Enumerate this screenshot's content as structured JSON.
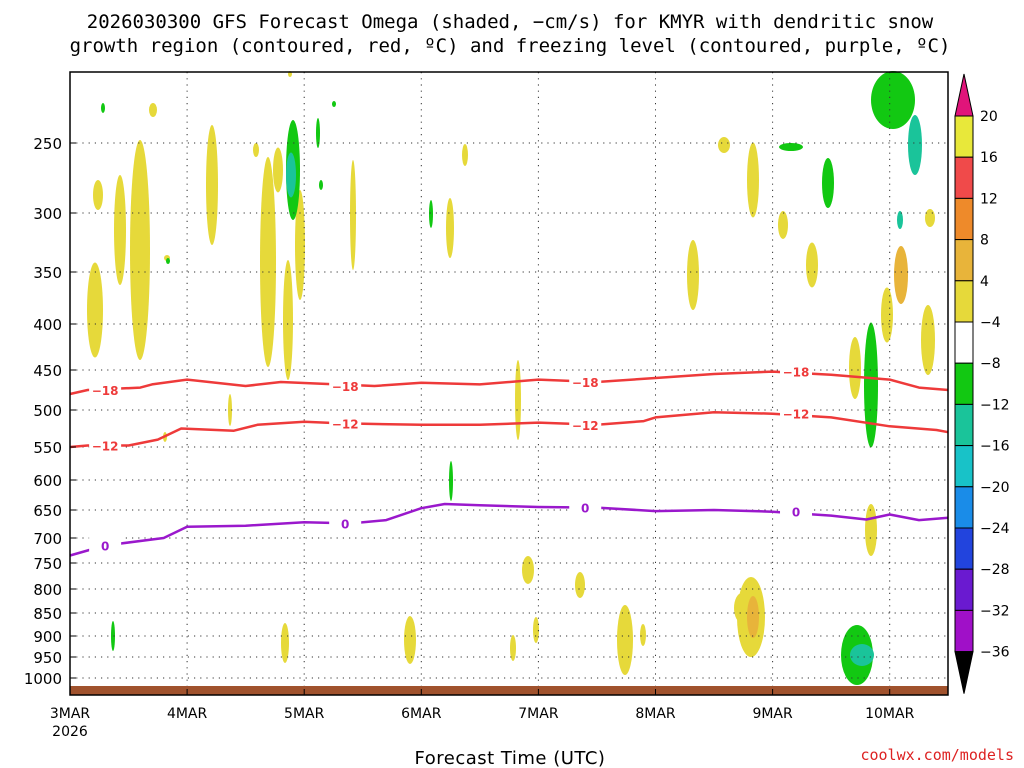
{
  "title_line1": "2026030300 GFS Forecast Omega (shaded, −cm/s) for KMYR with dendritic snow",
  "title_line2": "growth region (contoured, red, ºC) and freezing level (contoured, purple, ºC)",
  "xlabel": "Forecast Time (UTC)",
  "credit": "coolwx.com/models",
  "chart_data": {
    "type": "heatmap",
    "y_axis": {
      "ticks": [
        250,
        300,
        350,
        400,
        450,
        500,
        550,
        600,
        650,
        700,
        750,
        800,
        850,
        900,
        950,
        1000
      ],
      "inverted": true
    },
    "x_axis": {
      "range": [
        "2026-03-03T00",
        "2026-03-10T12"
      ],
      "ticks": [
        {
          "day": 0,
          "label": "3MAR",
          "sub": "2026"
        },
        {
          "day": 1,
          "label": "4MAR"
        },
        {
          "day": 2,
          "label": "5MAR"
        },
        {
          "day": 3,
          "label": "6MAR"
        },
        {
          "day": 4,
          "label": "7MAR"
        },
        {
          "day": 5,
          "label": "8MAR"
        },
        {
          "day": 6,
          "label": "9MAR"
        },
        {
          "day": 7,
          "label": "10MAR"
        }
      ]
    },
    "grid": true,
    "colorbar": {
      "levels": [
        {
          "value": "20",
          "color": "#e8e83a"
        },
        {
          "value": "16",
          "color": "#f04a4a"
        },
        {
          "value": "12",
          "color": "#ee8a2a"
        },
        {
          "value": "8",
          "color": "#e8b43a"
        },
        {
          "value": "4",
          "color": "#e6d93a"
        },
        {
          "value": "−4",
          "color": "#ffffff"
        },
        {
          "value": "−8",
          "color": "#12c812"
        },
        {
          "value": "−12",
          "color": "#1ac49a"
        },
        {
          "value": "−16",
          "color": "#18c2c8"
        },
        {
          "value": "−20",
          "color": "#1a8ce8"
        },
        {
          "value": "−24",
          "color": "#2244dd"
        },
        {
          "value": "−28",
          "color": "#6a1ad0"
        },
        {
          "value": "−32",
          "color": "#a010c8"
        },
        {
          "value": "−36",
          "color": "#a8a8a8"
        }
      ],
      "top_arrow_color": "#e0147a",
      "bottom_arrow_color": "#000000"
    },
    "contours": [
      {
        "label": "−18",
        "color": "#ee3a3a",
        "points": [
          [
            0,
            480
          ],
          [
            0.15,
            475
          ],
          [
            0.6,
            472
          ],
          [
            0.7,
            468
          ],
          [
            1,
            462
          ],
          [
            1.5,
            470
          ],
          [
            1.8,
            465
          ],
          [
            2.6,
            470
          ],
          [
            3,
            466
          ],
          [
            3.5,
            468
          ],
          [
            4,
            462
          ],
          [
            4.5,
            465
          ],
          [
            5,
            460
          ],
          [
            5.5,
            455
          ],
          [
            6,
            452
          ],
          [
            6.5,
            456
          ],
          [
            7,
            462
          ],
          [
            7.25,
            472
          ],
          [
            7.5,
            475
          ]
        ]
      },
      {
        "label": "−12",
        "color": "#ee3a3a",
        "points": [
          [
            0,
            550
          ],
          [
            0.15,
            548
          ],
          [
            0.5,
            548
          ],
          [
            0.75,
            540
          ],
          [
            0.95,
            525
          ],
          [
            1.4,
            528
          ],
          [
            1.6,
            520
          ],
          [
            2,
            516
          ],
          [
            2.3,
            518
          ],
          [
            3,
            520
          ],
          [
            3.5,
            520
          ],
          [
            4,
            517
          ],
          [
            4.5,
            520
          ],
          [
            4.9,
            515
          ],
          [
            5,
            510
          ],
          [
            5.5,
            503
          ],
          [
            6,
            505
          ],
          [
            6.5,
            510
          ],
          [
            7,
            522
          ],
          [
            7.4,
            527
          ],
          [
            7.5,
            530
          ]
        ]
      },
      {
        "label": "0",
        "color": "#9a18cc",
        "points": [
          [
            0,
            735
          ],
          [
            0.3,
            715
          ],
          [
            0.8,
            700
          ],
          [
            1,
            680
          ],
          [
            1.5,
            678
          ],
          [
            2,
            672
          ],
          [
            2.4,
            674
          ],
          [
            2.7,
            668
          ],
          [
            3,
            647
          ],
          [
            3.2,
            640
          ],
          [
            3.5,
            642
          ],
          [
            4,
            645
          ],
          [
            4.5,
            646
          ],
          [
            5,
            652
          ],
          [
            5.5,
            650
          ],
          [
            6,
            653
          ],
          [
            6.5,
            660
          ],
          [
            6.8,
            667
          ],
          [
            7,
            658
          ],
          [
            7.25,
            668
          ],
          [
            7.5,
            664
          ]
        ]
      }
    ],
    "omega_regions": [
      {
        "color": "#e6d93a",
        "value_class": "4"
      },
      {
        "color": "#e8b43a",
        "value_class": "8"
      },
      {
        "color": "#12c812",
        "value_class": "−8"
      },
      {
        "color": "#1ac49a",
        "value_class": "−12"
      }
    ]
  }
}
